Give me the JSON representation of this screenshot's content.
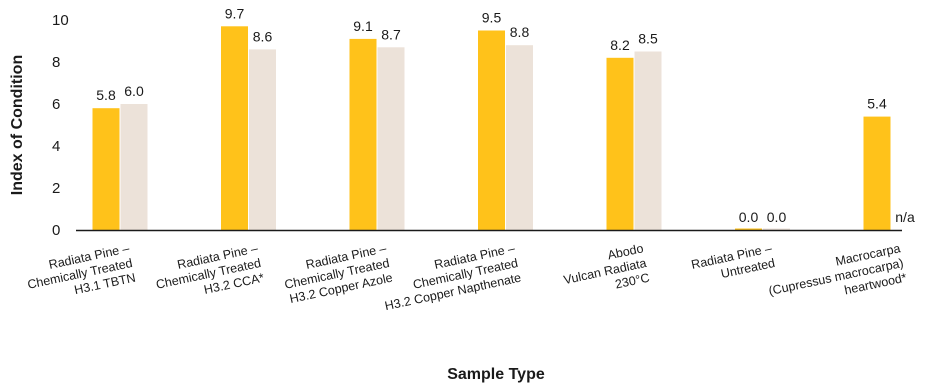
{
  "chart_data": {
    "type": "bar",
    "title": "",
    "xlabel": "Sample Type",
    "ylabel": "Index of Condition",
    "ylim": [
      0,
      10
    ],
    "yticks": [
      0,
      2,
      4,
      6,
      8,
      10
    ],
    "grid": false,
    "legend": "none",
    "colors": {
      "series1": "#FFC21A",
      "series2": "#ECE2D9",
      "axis": "#1a1a1a"
    },
    "categories": [
      [
        "Radiata Pine –",
        "Chemically Treated",
        "H3.1 TBTN"
      ],
      [
        "Radiata Pine –",
        "Chemically Treated",
        "H3.2 CCA*"
      ],
      [
        "Radiata Pine –",
        "Chemically Treated",
        "H3.2 Copper Azole"
      ],
      [
        "Radiata Pine –",
        "Chemically Treated",
        "H3.2 Copper Napthenate"
      ],
      [
        "Abodo",
        "Vulcan Radiata",
        "230°C"
      ],
      [
        "Radiata Pine –",
        "Untreated"
      ],
      [
        "Macrocarpa",
        "(Cupressus macrocarpa)",
        "heartwood*"
      ]
    ],
    "series": [
      {
        "values": [
          5.8,
          9.7,
          9.1,
          9.5,
          8.2,
          0.0,
          5.4
        ],
        "labels": [
          "5.8",
          "9.7",
          "9.1",
          "9.5",
          "8.2",
          "0.0",
          "5.4"
        ]
      },
      {
        "values": [
          6.0,
          8.6,
          8.7,
          8.8,
          8.5,
          0.0,
          null
        ],
        "labels": [
          "6.0",
          "8.6",
          "8.7",
          "8.8",
          "8.5",
          "0.0",
          "n/a"
        ]
      }
    ]
  }
}
